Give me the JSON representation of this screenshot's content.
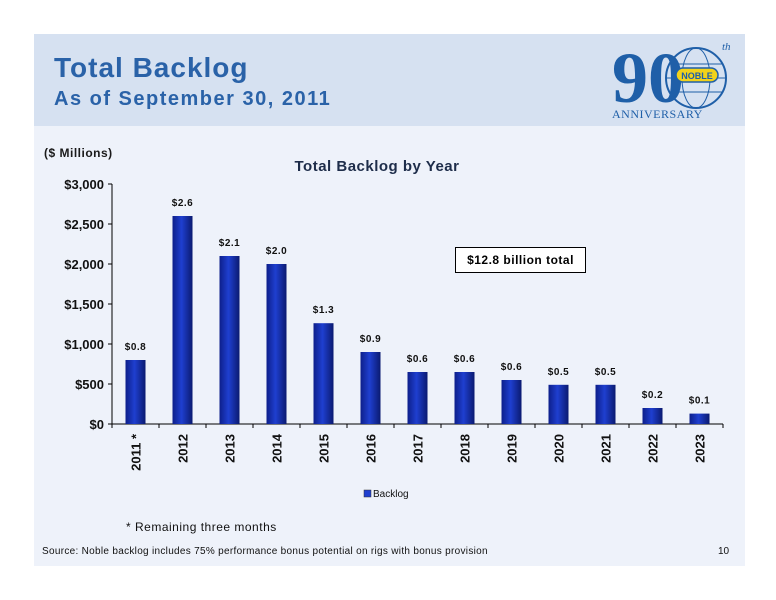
{
  "slide": {
    "title": "Total Backlog",
    "subtitle": "As of September 30, 2011",
    "units_label": "($ Millions)",
    "total_box": "$12.8 billion total",
    "footnote": "* Remaining three months",
    "source": "Source: Noble backlog includes 75% performance bonus potential on rigs with bonus provision",
    "page_number": "10"
  },
  "logo": {
    "number": "90",
    "superscript": "th",
    "brand": "NOBLE",
    "caption": "ANNIVERSARY"
  },
  "chart_data": {
    "type": "bar",
    "title": "Total Backlog by Year",
    "categories": [
      "2011 *",
      "2012",
      "2013",
      "2014",
      "2015",
      "2016",
      "2017",
      "2018",
      "2019",
      "2020",
      "2021",
      "2022",
      "2023"
    ],
    "series": [
      {
        "name": "Backlog",
        "values": [
          800,
          2600,
          2100,
          2000,
          1260,
          900,
          650,
          650,
          550,
          490,
          490,
          200,
          130
        ],
        "data_labels": [
          "$0.8",
          "$2.6",
          "$2.1",
          "$2.0",
          "$1.3",
          "$0.9",
          "$0.6",
          "$0.6",
          "$0.6",
          "$0.5",
          "$0.5",
          "$0.2",
          "$0.1"
        ]
      }
    ],
    "ylim": [
      0,
      3000
    ],
    "yticks": [
      0,
      500,
      1000,
      1500,
      2000,
      2500,
      3000
    ],
    "ytick_labels": [
      "$0",
      "$500",
      "$1,000",
      "$1,500",
      "$2,000",
      "$2,500",
      "$3,000"
    ],
    "legend_position": "bottom",
    "bar_color": "#1f3fd0",
    "grid": false
  }
}
